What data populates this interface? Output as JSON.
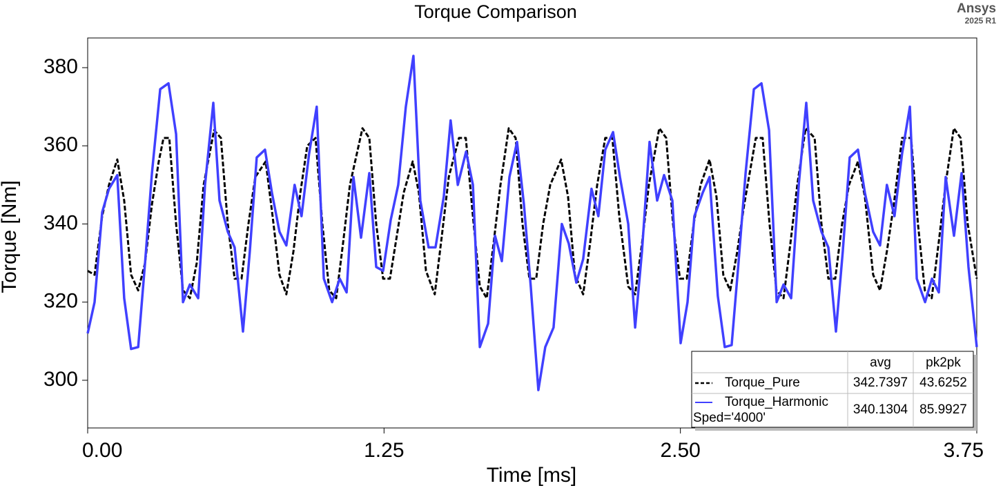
{
  "chart_data": {
    "type": "line",
    "title": "Torque Comparison",
    "brand": "Ansys",
    "version": "2025 R1",
    "x_label": "Time [ms]",
    "y_label": "Torque [Nm]",
    "xlim": [
      0,
      3.75
    ],
    "ylim": [
      287.8,
      387.6
    ],
    "xticks": [
      {
        "value": 0,
        "label": "0.00"
      },
      1.25,
      {
        "value": 2.5,
        "label": "2.50"
      },
      3.75
    ],
    "yticks": [
      300,
      320,
      340,
      360,
      380
    ],
    "legend_columns": [
      "avg",
      "pk2pk"
    ],
    "series": [
      {
        "name": "Torque_Pure",
        "color": "#000000",
        "dashed": true,
        "avg": 342.7397,
        "pk2pk": 43.6252,
        "x": [
          0,
          0.029,
          0.061,
          0.09,
          0.125,
          0.154,
          0.183,
          0.213,
          0.242,
          0.271,
          0.3,
          0.32,
          0.344,
          0.373,
          0.402,
          0.431,
          0.46,
          0.489,
          0.533,
          0.562,
          0.591,
          0.62,
          0.649,
          0.678,
          0.707,
          0.751,
          0.78,
          0.809,
          0.838,
          0.868,
          0.897,
          0.926,
          0.961,
          0.99,
          1.019,
          1.048,
          1.077,
          1.106,
          1.159,
          1.188,
          1.217,
          1.246,
          1.275,
          1.304,
          1.333,
          1.371,
          1.397,
          1.427,
          1.464,
          1.494,
          1.523,
          1.566,
          1.595,
          1.625,
          1.654,
          1.683,
          1.712,
          1.741,
          1.776,
          1.805,
          1.834,
          1.863,
          1.892,
          1.921,
          1.951,
          1.997,
          2.026,
          2.055,
          2.09,
          2.119,
          2.149,
          2.183,
          2.213,
          2.242,
          2.28,
          2.309,
          2.338,
          2.367,
          2.411,
          2.44,
          2.469,
          2.498,
          2.527,
          2.556,
          2.585,
          2.623,
          2.652,
          2.681,
          2.71,
          2.74,
          2.769,
          2.818,
          2.847,
          2.876,
          2.905,
          2.935,
          2.964,
          2.993,
          3.028,
          3.066,
          3.095,
          3.124,
          3.153,
          3.182,
          3.211,
          3.249,
          3.278,
          3.313,
          3.342,
          3.371,
          3.4,
          3.435,
          3.473,
          3.502,
          3.531,
          3.56,
          3.589,
          3.618,
          3.653,
          3.682,
          3.712,
          3.75
        ],
        "values": [
          328,
          327,
          342,
          350,
          356.5,
          346,
          327,
          323,
          330,
          345,
          356,
          362,
          362,
          340,
          323,
          321,
          330,
          350,
          364,
          362,
          340,
          326,
          326,
          340,
          352,
          356,
          342,
          327,
          322,
          333,
          348,
          360,
          362,
          340,
          323,
          321,
          335,
          350,
          364.5,
          362,
          340,
          326,
          326,
          337,
          348,
          356,
          348,
          328,
          322,
          337,
          352,
          362,
          362,
          342,
          324,
          321,
          335,
          350,
          364.5,
          362,
          340,
          326,
          326,
          340,
          350,
          356.5,
          347,
          327,
          322,
          335,
          350,
          362,
          362,
          342,
          324,
          322,
          335,
          350,
          364.5,
          362,
          340,
          326,
          326,
          340,
          350,
          356.5,
          347,
          327,
          323,
          333,
          345,
          362,
          362,
          340,
          323,
          321,
          335,
          350,
          364.5,
          362,
          340,
          326,
          326,
          340,
          350,
          356,
          347,
          327,
          323,
          333,
          345,
          362,
          362,
          340,
          323,
          321,
          335,
          350,
          364.5,
          362,
          340,
          326
        ]
      },
      {
        "name": "Torque_Harmonic",
        "variation": "Sped='4000'",
        "color": "#4040ff",
        "dashed": false,
        "avg": 340.1304,
        "pk2pk": 85.9927,
        "x": [
          0,
          0.029,
          0.061,
          0.09,
          0.125,
          0.154,
          0.183,
          0.213,
          0.242,
          0.271,
          0.306,
          0.341,
          0.373,
          0.402,
          0.431,
          0.466,
          0.495,
          0.53,
          0.556,
          0.591,
          0.62,
          0.655,
          0.684,
          0.713,
          0.748,
          0.777,
          0.809,
          0.838,
          0.873,
          0.902,
          0.934,
          0.966,
          0.996,
          1.031,
          1.063,
          1.092,
          1.121,
          1.153,
          1.188,
          1.217,
          1.246,
          1.278,
          1.31,
          1.342,
          1.374,
          1.403,
          1.438,
          1.467,
          1.502,
          1.531,
          1.561,
          1.596,
          1.625,
          1.654,
          1.689,
          1.718,
          1.747,
          1.779,
          1.811,
          1.84,
          1.869,
          1.901,
          1.93,
          1.965,
          2,
          2.029,
          2.061,
          2.09,
          2.125,
          2.154,
          2.183,
          2.216,
          2.245,
          2.28,
          2.309,
          2.338,
          2.37,
          2.402,
          2.431,
          2.466,
          2.501,
          2.53,
          2.559,
          2.594,
          2.623,
          2.658,
          2.687,
          2.716,
          2.745,
          2.775,
          2.81,
          2.842,
          2.874,
          2.906,
          2.935,
          2.967,
          2.999,
          3.031,
          3.06,
          3.095,
          3.124,
          3.156,
          3.185,
          3.214,
          3.249,
          3.278,
          3.313,
          3.342,
          3.371,
          3.403,
          3.435,
          3.468,
          3.497,
          3.532,
          3.561,
          3.59,
          3.619,
          3.654,
          3.686,
          3.715,
          3.75
        ],
        "values": [
          312,
          320,
          343,
          349,
          352.5,
          321,
          308,
          308.5,
          330,
          353,
          374.5,
          376,
          363,
          320,
          324.5,
          321,
          350,
          371,
          346,
          338,
          334,
          312.5,
          333,
          357,
          359,
          348,
          338,
          334.5,
          350,
          342,
          358,
          370,
          326,
          320,
          326,
          322.5,
          352,
          336.5,
          353,
          329,
          328,
          341,
          350,
          370,
          383,
          346,
          334,
          334,
          347,
          366.5,
          350,
          358.5,
          350,
          308.5,
          314.5,
          337,
          330.5,
          352,
          361,
          345,
          324,
          297.5,
          308.5,
          313.5,
          340,
          335,
          325,
          331,
          349,
          342,
          359,
          363.5,
          352,
          340,
          313.5,
          333,
          361,
          346,
          352.5,
          346,
          309.5,
          320,
          342,
          348,
          352,
          321.5,
          308.5,
          309,
          330,
          353,
          374.5,
          376,
          364,
          320,
          324.5,
          321,
          350,
          371,
          346,
          338,
          334,
          312.5,
          333,
          357,
          359,
          348,
          338,
          334.5,
          350,
          342,
          358,
          370,
          326,
          320,
          326,
          322.5,
          352,
          337,
          353,
          329,
          308.5
        ]
      }
    ]
  }
}
